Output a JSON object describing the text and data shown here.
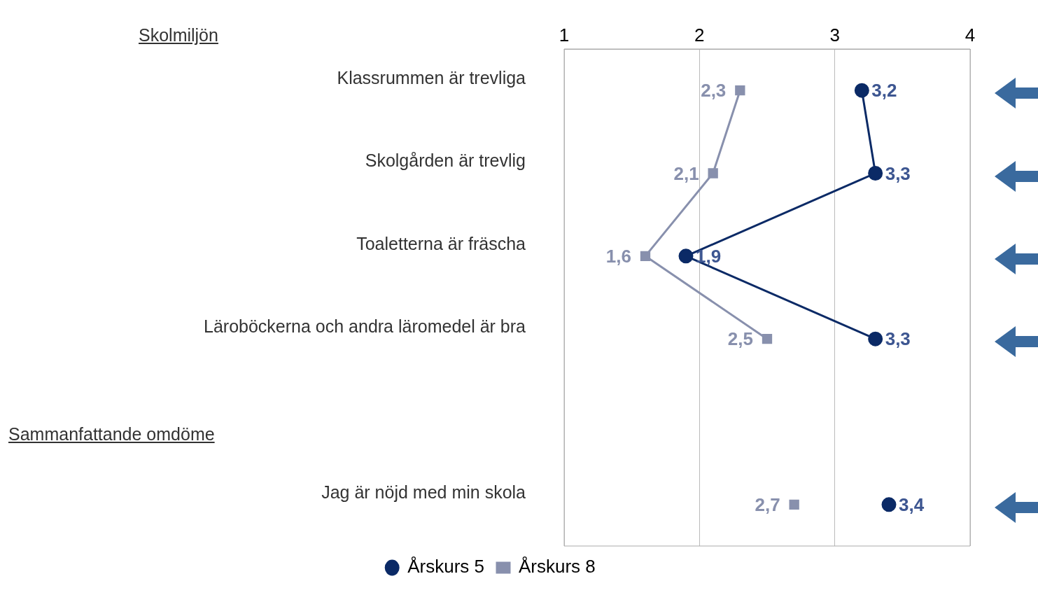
{
  "chart_data": {
    "type": "line",
    "orientation": "horizontal",
    "categories": [
      "Klassrummen är trevliga",
      "Skolgården är trevlig",
      "Toaletterna är fräscha",
      "Läroböckerna och andra läromedel är bra",
      null,
      "Jag är nöjd med min skola"
    ],
    "series": [
      {
        "name": "Årskurs 5",
        "color": "#0b2a66",
        "values": [
          3.2,
          3.3,
          1.9,
          3.3,
          null,
          3.4
        ],
        "value_labels": [
          "3,2",
          "3,3",
          "1,9",
          "3,3",
          null,
          "3,4"
        ]
      },
      {
        "name": "Årskurs 8",
        "color": "#8890ad",
        "values": [
          2.3,
          2.1,
          1.6,
          2.5,
          null,
          2.7
        ],
        "value_labels": [
          "2,3",
          "2,1",
          "1,6",
          "2,5",
          null,
          "2,7"
        ],
        "marker": "square"
      }
    ],
    "marker": "circle",
    "xlim": [
      1,
      4
    ],
    "xticks": [
      1,
      2,
      3,
      4
    ],
    "grid": "x",
    "legend": "bottom",
    "annotations": [
      "Skolmiljön",
      "Sammanfattande omdöme"
    ]
  }
}
